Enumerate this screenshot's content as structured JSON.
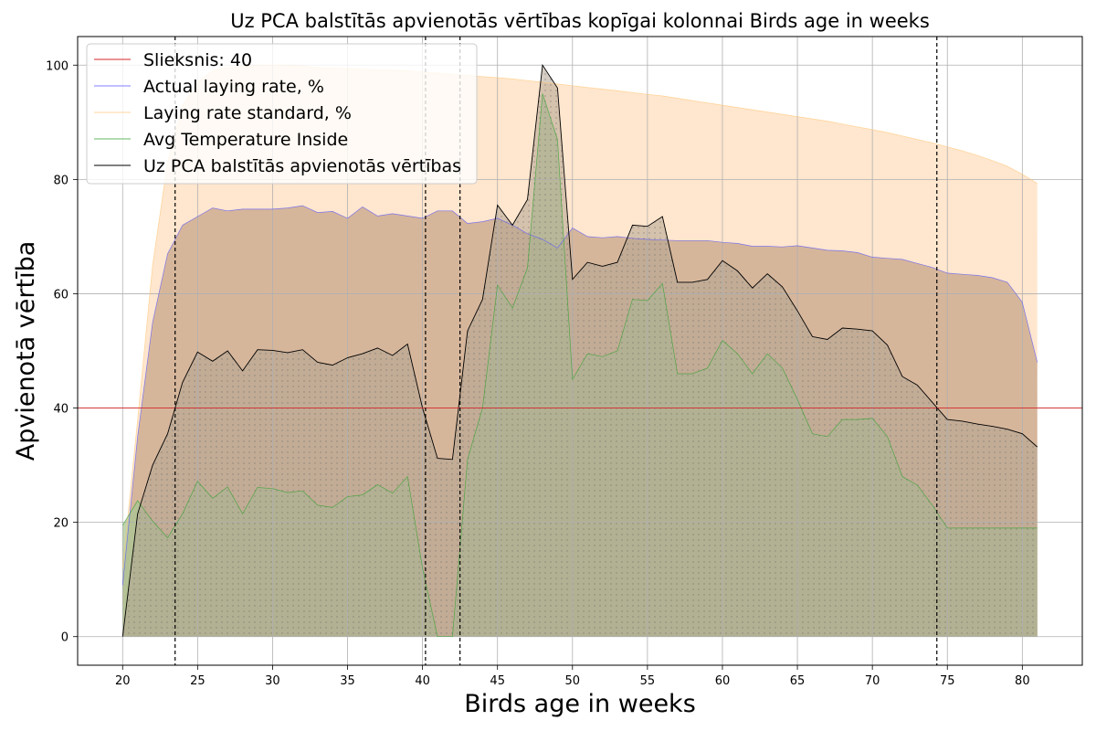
{
  "chart_data": {
    "type": "area",
    "title": "Uz PCA balstītās apvienotās vērtības kopīgai kolonnai Birds age in weeks",
    "xlabel": "Birds age in weeks",
    "ylabel": "Apvienotā vērtība",
    "xlim": [
      17,
      84
    ],
    "ylim": [
      -5,
      105
    ],
    "xticks": [
      20,
      25,
      30,
      35,
      40,
      45,
      50,
      55,
      60,
      65,
      70,
      75,
      80
    ],
    "yticks": [
      0,
      20,
      40,
      60,
      80,
      100
    ],
    "grid": true,
    "legend_position": "top-left",
    "threshold": {
      "label": "Slieksnis: 40",
      "value": 40,
      "color": "#d62728"
    },
    "vlines": [
      23.5,
      40.2,
      42.5,
      74.3
    ],
    "x": [
      20,
      21,
      22,
      23,
      24,
      25,
      26,
      27,
      28,
      29,
      30,
      31,
      32,
      33,
      34,
      35,
      36,
      37,
      38,
      39,
      40,
      41,
      42,
      43,
      44,
      45,
      46,
      47,
      48,
      49,
      50,
      51,
      52,
      53,
      54,
      55,
      56,
      57,
      58,
      59,
      60,
      61,
      62,
      63,
      64,
      65,
      66,
      67,
      68,
      69,
      70,
      71,
      72,
      73,
      74,
      75,
      76,
      77,
      78,
      79,
      80,
      81
    ],
    "series": [
      {
        "name": "Actual laying rate, %",
        "color": "#5555ff",
        "fill": "#c8a58a",
        "values": [
          9,
          35,
          55,
          67,
          72,
          73.5,
          75,
          74.5,
          74.8,
          74.8,
          74.8,
          75,
          75.4,
          74.2,
          74.4,
          73.2,
          75.2,
          73.6,
          74,
          73.6,
          73.2,
          74.5,
          74.5,
          72.3,
          72.6,
          73.2,
          72,
          70.5,
          69.5,
          68,
          71.5,
          70,
          69.8,
          70,
          69.7,
          69.5,
          69.4,
          69.3,
          69.3,
          69.3,
          69,
          68.8,
          68.3,
          68.3,
          68.2,
          68.4,
          68,
          67.6,
          67.5,
          67.2,
          66.4,
          66.2,
          66,
          65.3,
          64.6,
          63.6,
          63.4,
          63.2,
          62.8,
          62,
          58.5,
          48
        ]
      },
      {
        "name": "Laying rate standard, %",
        "color": "#ffc87a",
        "fill": "#ffe2c6",
        "values": [
          12,
          38,
          65,
          83,
          93,
          97,
          99,
          99.6,
          99.8,
          99.9,
          100,
          99.9,
          99.8,
          99.6,
          99.5,
          99.4,
          99.3,
          99.2,
          99.1,
          99,
          98.8,
          98.6,
          98.4,
          98.2,
          98,
          97.8,
          97.6,
          97.3,
          97,
          96.7,
          96.4,
          96.1,
          95.8,
          95.5,
          95.2,
          94.9,
          94.6,
          94.2,
          93.8,
          93.4,
          93,
          92.6,
          92.2,
          91.8,
          91.4,
          91,
          90.6,
          90.2,
          89.7,
          89.2,
          88.7,
          88.2,
          87.6,
          87,
          86.4,
          85.7,
          85,
          84.2,
          83.3,
          82.3,
          80.9,
          79.3
        ]
      },
      {
        "name": "Avg Temperature Inside",
        "color": "#2ca02c",
        "fill": "#a8c694",
        "values": [
          19.5,
          23.8,
          20.2,
          17.3,
          21.5,
          27.2,
          24.2,
          26.2,
          21.5,
          26.1,
          25.9,
          25.2,
          25.5,
          23,
          22.6,
          24.5,
          24.8,
          26.6,
          25.1,
          28,
          12,
          0,
          0,
          31,
          40,
          61.5,
          57.5,
          64.5,
          95,
          87,
          45,
          49.5,
          49,
          50,
          59,
          58.8,
          61.8,
          46,
          46,
          47,
          51.8,
          49.5,
          46,
          49.5,
          47,
          41.5,
          35.5,
          35,
          38,
          38,
          38.2,
          35,
          28,
          26.5,
          23,
          19,
          19,
          19,
          19,
          19,
          19,
          19
        ]
      },
      {
        "name": "Uz PCA balstītās apvienotās vērtības",
        "color": "#000000",
        "fill": "#b3a492",
        "values": [
          0,
          21.5,
          30,
          35.5,
          44.5,
          49.8,
          48.2,
          50,
          46.5,
          50.2,
          50.1,
          49.7,
          50.2,
          48,
          47.5,
          48.8,
          49.5,
          50.5,
          49.2,
          51.2,
          40,
          31.2,
          31,
          53.5,
          59,
          75.5,
          72,
          76.5,
          100,
          96,
          62.5,
          65.5,
          64.8,
          65.5,
          72,
          71.8,
          73.5,
          62,
          62,
          62.5,
          65.8,
          64,
          61,
          63.5,
          61.2,
          57,
          52.5,
          52,
          54,
          53.8,
          53.5,
          51,
          45.5,
          44,
          41,
          38,
          37.7,
          37.2,
          36.8,
          36.3,
          35.5,
          33.2
        ]
      }
    ]
  }
}
